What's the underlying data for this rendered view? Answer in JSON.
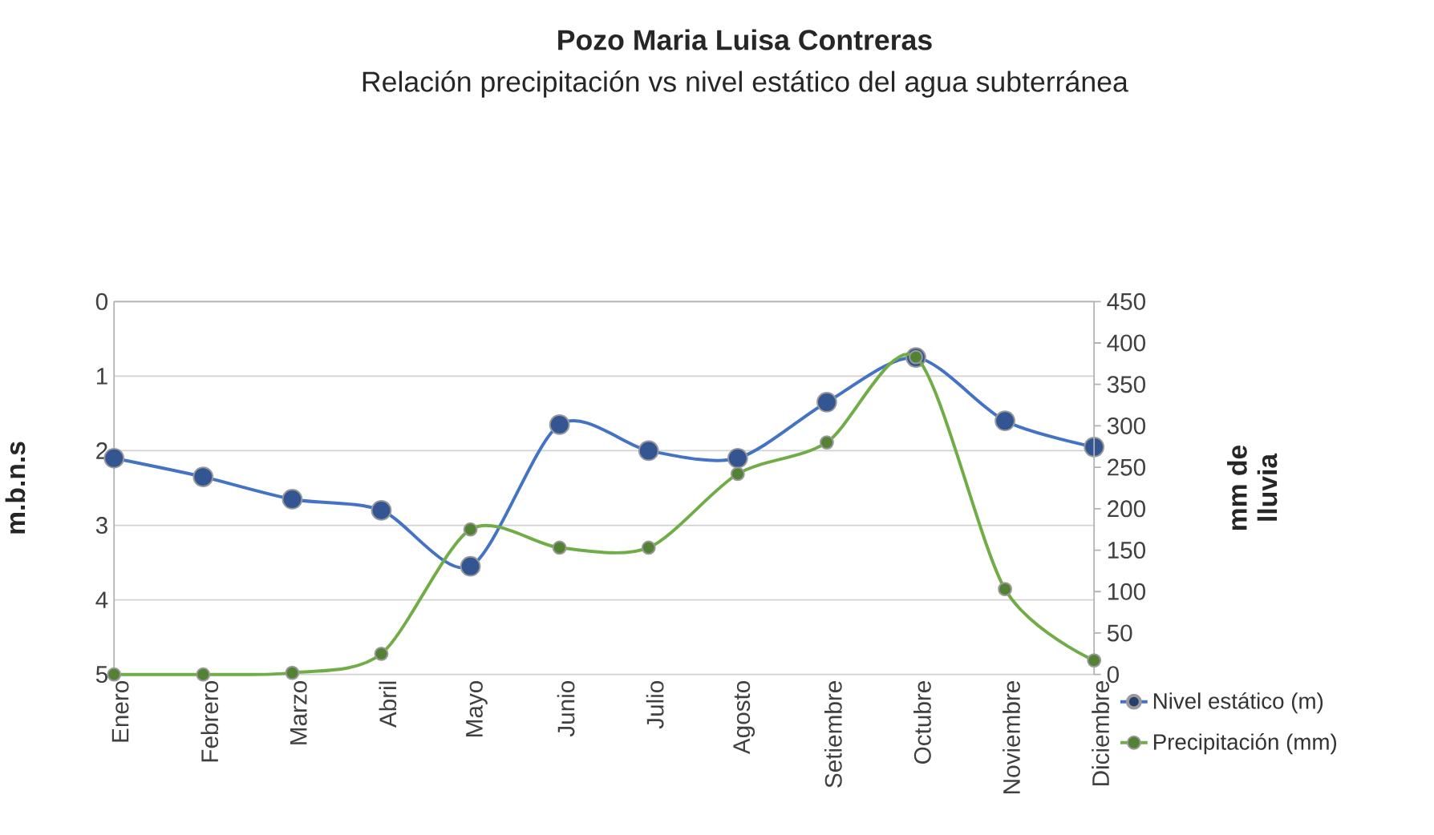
{
  "chart_data": {
    "type": "line",
    "title": "Pozo Maria Luisa Contreras",
    "subtitle": "Relación precipitación vs nivel estático del agua subterránea",
    "categories": [
      "Enero",
      "Febrero",
      "Marzo",
      "Abril",
      "Mayo",
      "Junio",
      "Julio",
      "Agosto",
      "Setiembre",
      "Octubre",
      "Noviembre",
      "Diciembre"
    ],
    "ylabel": "m.b.n.s",
    "y2label": "mm de lluvia",
    "ylim": [
      5,
      0
    ],
    "yticks": [
      0,
      1,
      2,
      3,
      4,
      5
    ],
    "y2lim": [
      0,
      450
    ],
    "y2ticks": [
      0,
      50,
      100,
      150,
      200,
      250,
      300,
      350,
      400,
      450
    ],
    "series": [
      {
        "name": "Nivel estático (m)",
        "color": "#4472c4",
        "values": [
          2.1,
          2.35,
          2.65,
          2.8,
          3.55,
          1.65,
          2.0,
          2.1,
          1.35,
          0.75,
          1.6,
          1.95
        ]
      },
      {
        "name": "Precipitación (mm)",
        "color": "#70ad47",
        "axis": "y2",
        "values": [
          0,
          0,
          2,
          25,
          175,
          153,
          153,
          242,
          280,
          383,
          103,
          17
        ]
      }
    ],
    "grid": "y",
    "legend": "bottom right",
    "marker": "circle",
    "line_style": "solid"
  }
}
